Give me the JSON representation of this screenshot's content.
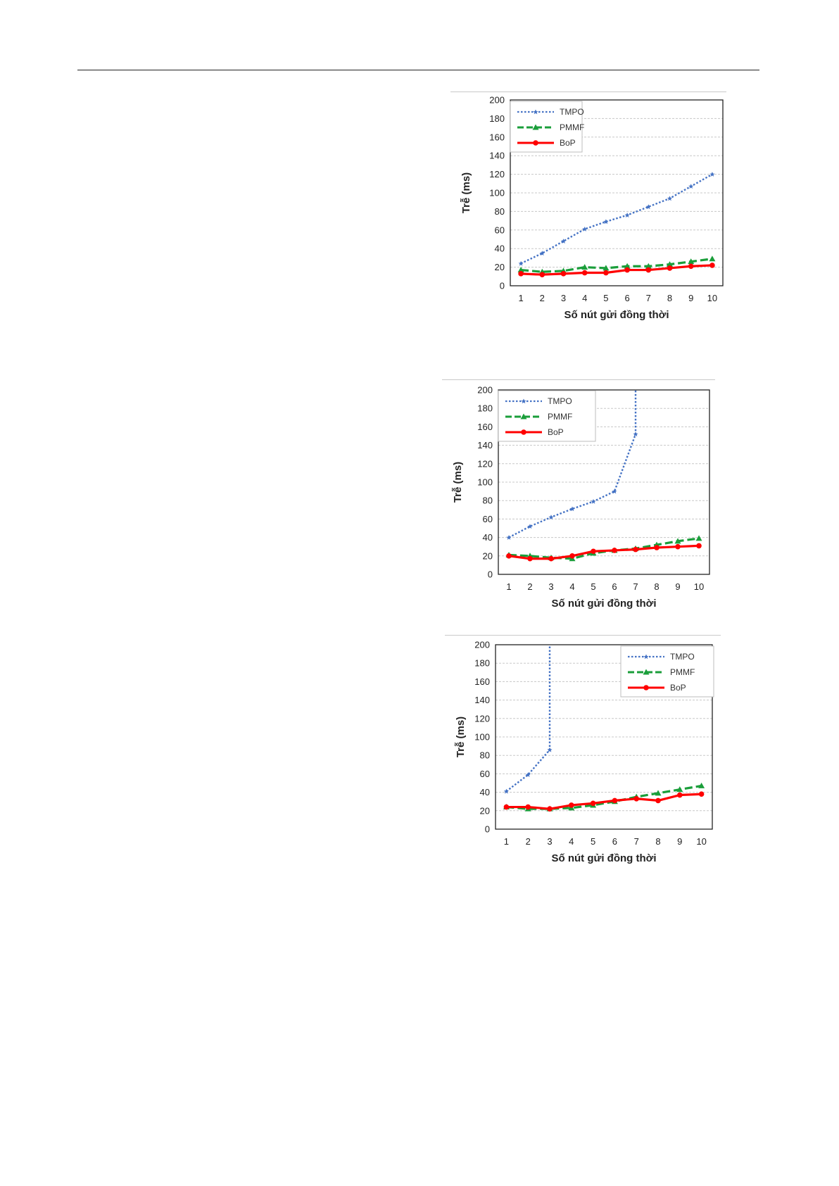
{
  "colors": {
    "tmpo": "#4472c4",
    "pmmf": "#1a9e3a",
    "bop": "#ff0000",
    "grid": "#c8c8c8",
    "frame": "#222222"
  },
  "chart_data": [
    {
      "type": "line",
      "xlabel": "Số nút gửi đồng thời",
      "ylabel": "Trễ (ms)",
      "x": [
        1,
        2,
        3,
        4,
        5,
        6,
        7,
        8,
        9,
        10
      ],
      "ylim": [
        0,
        200
      ],
      "yticks": [
        0,
        20,
        40,
        60,
        80,
        100,
        120,
        140,
        160,
        180,
        200
      ],
      "grid": true,
      "legend_position": "top-left",
      "series": [
        {
          "name": "TMPO",
          "values": [
            24,
            35,
            48,
            61,
            69,
            76,
            85,
            94,
            107,
            120
          ]
        },
        {
          "name": "PMMF",
          "values": [
            17,
            15,
            16,
            20,
            19,
            21,
            21,
            23,
            26,
            29
          ]
        },
        {
          "name": "BoP",
          "values": [
            13,
            12,
            13,
            14,
            14,
            17,
            17,
            19,
            21,
            22
          ]
        }
      ]
    },
    {
      "type": "line",
      "xlabel": "Số nút gửi đồng thời",
      "ylabel": "Trễ (ms)",
      "x": [
        1,
        2,
        3,
        4,
        5,
        6,
        7,
        8,
        9,
        10
      ],
      "ylim": [
        0,
        200
      ],
      "yticks": [
        0,
        20,
        40,
        60,
        80,
        100,
        120,
        140,
        160,
        180,
        200
      ],
      "grid": true,
      "legend_position": "top-left",
      "series": [
        {
          "name": "TMPO",
          "x": [
            1,
            2,
            3,
            4,
            5,
            6,
            7,
            7
          ],
          "values": [
            40,
            52,
            62,
            71,
            79,
            90,
            152,
            200
          ]
        },
        {
          "name": "PMMF",
          "values": [
            21,
            20,
            18,
            17,
            23,
            26,
            28,
            32,
            36,
            39
          ]
        },
        {
          "name": "BoP",
          "values": [
            20,
            17,
            17,
            20,
            25,
            26,
            27,
            29,
            30,
            31
          ]
        }
      ]
    },
    {
      "type": "line",
      "xlabel": "Số nút gửi đồng thời",
      "ylabel": "Trễ (ms)",
      "x": [
        1,
        2,
        3,
        4,
        5,
        6,
        7,
        8,
        9,
        10
      ],
      "ylim": [
        0,
        200
      ],
      "yticks": [
        0,
        20,
        40,
        60,
        80,
        100,
        120,
        140,
        160,
        180,
        200
      ],
      "grid": true,
      "legend_position": "top-right",
      "series": [
        {
          "name": "TMPO",
          "x": [
            1,
            2,
            3,
            3
          ],
          "values": [
            41,
            59,
            86,
            200
          ]
        },
        {
          "name": "PMMF",
          "values": [
            24,
            22,
            22,
            23,
            26,
            30,
            35,
            39,
            43,
            47
          ]
        },
        {
          "name": "BoP",
          "values": [
            24,
            24,
            22,
            26,
            28,
            31,
            33,
            31,
            37,
            38
          ]
        }
      ]
    }
  ]
}
